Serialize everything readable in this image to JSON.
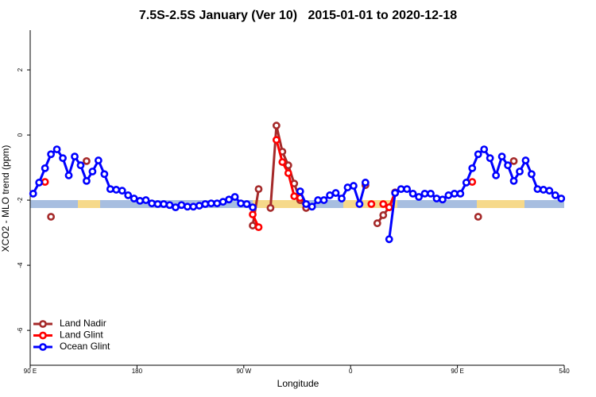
{
  "chart_data": {
    "type": "line",
    "title": "7.5S-2.5S January (Ver 10)   2015-01-01 to 2020-12-18",
    "x_label": "Longitude",
    "y_label": "XCO2 - MLO trend (ppm)",
    "xlim": [
      90,
      540
    ],
    "xticks": [
      {
        "value": 90,
        "label": "90 E"
      },
      180,
      {
        "value": 270,
        "label": "90 W"
      },
      {
        "value": 360,
        "label": "0"
      },
      {
        "value": 450,
        "label": "90 E"
      },
      540
    ],
    "ylim": [
      -7.07,
      3.22
    ],
    "yticks": [
      2,
      0,
      -2,
      -4,
      -6
    ],
    "legend": "bottom-left",
    "series": [
      {
        "name": "Land Nadir",
        "color": "#a52a2a",
        "x": [
          107.5,
          122.5,
          137.5,
          207.5,
          277.5,
          282.5,
          287.5,
          292.5,
          297.5,
          302.5,
          307.5,
          312.5,
          317.5,
          322.5,
          347.5,
          372.5,
          377.5,
          382.5,
          387.5,
          392.5,
          397.5,
          432.5,
          467.5,
          482.5,
          497.5
        ],
        "values": [
          -2.51,
          null,
          -0.8,
          null,
          -2.78,
          -1.66,
          null,
          -2.24,
          0.29,
          -0.51,
          -0.93,
          -1.49,
          -2.0,
          -2.24,
          null,
          -1.54,
          null,
          -2.71,
          -2.46,
          -2.22,
          -1.76,
          null,
          -2.51,
          null,
          -0.8
        ]
      },
      {
        "name": "Land Glint",
        "color": "#ff0000",
        "x": [
          102.5,
          192.5,
          277.5,
          282.5,
          287.5,
          297.5,
          302.5,
          307.5,
          312.5,
          317.5,
          347.5,
          377.5,
          382.5,
          387.5,
          392.5,
          397.5,
          432.5,
          462.5
        ],
        "values": [
          -1.44,
          null,
          -2.44,
          -2.83,
          null,
          -0.15,
          -0.83,
          -1.17,
          -1.88,
          -1.93,
          null,
          -2.12,
          null,
          -2.12,
          -2.22,
          -1.78,
          null,
          -1.44
        ]
      },
      {
        "name": "Ocean Glint",
        "color": "#0000ff",
        "x": [
          92.5,
          97.5,
          102.5,
          107.5,
          112.5,
          117.5,
          122.5,
          127.5,
          132.5,
          137.5,
          142.5,
          147.5,
          152.5,
          157.5,
          162.5,
          167.5,
          172.5,
          177.5,
          182.5,
          187.5,
          192.5,
          197.5,
          202.5,
          207.5,
          212.5,
          217.5,
          222.5,
          227.5,
          232.5,
          237.5,
          242.5,
          247.5,
          252.5,
          257.5,
          262.5,
          267.5,
          272.5,
          277.5,
          282.5,
          287.5,
          292.5,
          297.5,
          302.5,
          307.5,
          312.5,
          317.5,
          322.5,
          327.5,
          332.5,
          337.5,
          342.5,
          347.5,
          352.5,
          357.5,
          362.5,
          367.5,
          372.5,
          377.5,
          382.5,
          387.5,
          392.5,
          397.5,
          402.5,
          407.5,
          412.5,
          417.5,
          422.5,
          427.5,
          432.5,
          437.5,
          442.5,
          447.5,
          452.5,
          457.5,
          462.5,
          467.5,
          472.5,
          477.5,
          482.5,
          487.5,
          492.5,
          497.5,
          502.5,
          507.5,
          512.5,
          517.5,
          522.5,
          527.5,
          532.5,
          537.5
        ],
        "values": [
          -1.8,
          -1.46,
          -1.02,
          -0.59,
          -0.44,
          -0.71,
          -1.24,
          -0.66,
          -0.93,
          -1.41,
          -1.12,
          -0.78,
          -1.2,
          -1.66,
          -1.68,
          -1.71,
          -1.85,
          -1.95,
          -2.02,
          -2.0,
          -2.1,
          -2.12,
          -2.12,
          -2.15,
          -2.22,
          -2.15,
          -2.2,
          -2.2,
          -2.17,
          -2.12,
          -2.1,
          -2.1,
          -2.05,
          -1.98,
          -1.9,
          -2.1,
          -2.12,
          -2.22,
          null,
          null,
          null,
          null,
          null,
          null,
          null,
          -1.73,
          -2.12,
          -2.2,
          -2.0,
          -2.0,
          -1.85,
          -1.78,
          -1.95,
          -1.61,
          -1.56,
          -2.12,
          -1.46,
          null,
          null,
          null,
          -3.2,
          -1.78,
          -1.66,
          -1.66,
          -1.8,
          -1.9,
          -1.8,
          -1.8,
          -1.95,
          -1.98,
          -1.85,
          -1.8,
          -1.8,
          -1.46,
          -1.02,
          -0.59,
          -0.44,
          -0.71,
          -1.24,
          -0.66,
          -0.93,
          -1.41,
          -1.12,
          -0.78,
          -1.2,
          -1.66,
          -1.68,
          -1.71,
          -1.85,
          -1.95
        ]
      }
    ]
  }
}
